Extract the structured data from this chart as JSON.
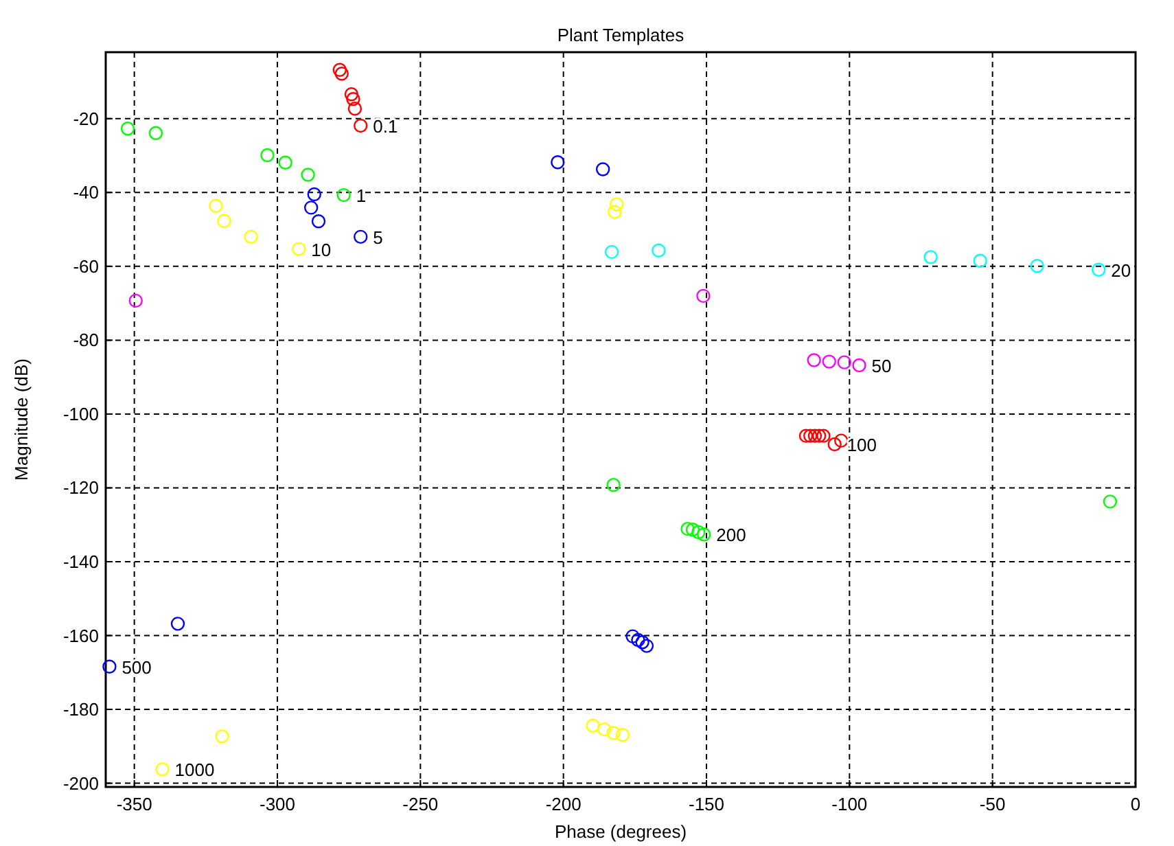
{
  "chart_data": {
    "type": "scatter",
    "title": "Plant Templates",
    "xlabel": "Phase (degrees)",
    "ylabel": "Magnitude (dB)",
    "xlim": [
      -360,
      0
    ],
    "ylim": [
      -201,
      -2
    ],
    "xticks": [
      -350,
      -300,
      -250,
      -200,
      -150,
      -100,
      -50,
      0
    ],
    "yticks": [
      -200,
      -180,
      -160,
      -140,
      -120,
      -100,
      -80,
      -60,
      -40,
      -20
    ],
    "grid": true,
    "marker": "circle",
    "series": [
      {
        "color": "#ff0000",
        "x": [
          -278.2,
          -277.5,
          -274.1,
          -273.5,
          -272.9,
          -270.9,
          -115.2,
          -113.7,
          -112.1,
          -110.6,
          -109.1,
          -105.2,
          -102.9
        ],
        "values": [
          -6.8,
          -7.8,
          -13.4,
          -14.7,
          -17.3,
          -21.9,
          -105.9,
          -105.9,
          -105.9,
          -105.9,
          -105.9,
          -108.2,
          -107.2
        ]
      },
      {
        "color": "#00ff00",
        "x": [
          -352.3,
          -342.5,
          -303.5,
          -297.2,
          -289.3,
          -276.8,
          -182.5,
          -8.9,
          -156.6,
          -154.8,
          -152.8,
          -150.9
        ],
        "values": [
          -22.7,
          -23.9,
          -29.9,
          -31.9,
          -35.2,
          -40.7,
          -119.2,
          -123.7,
          -131.1,
          -131.3,
          -132.0,
          -132.6
        ]
      },
      {
        "color": "#0000ff",
        "x": [
          -287.1,
          -288.2,
          -285.6,
          -270.9,
          -202.0,
          -186.2,
          -334.8,
          -358.7,
          -175.8,
          -173.9,
          -172.4,
          -170.9
        ],
        "values": [
          -40.5,
          -44.1,
          -47.8,
          -52.0,
          -31.8,
          -33.7,
          -156.8,
          -168.4,
          -160.2,
          -161.2,
          -161.8,
          -162.8
        ]
      },
      {
        "color": "#ffff00",
        "x": [
          -321.5,
          -318.6,
          -309.2,
          -292.5,
          -181.4,
          -182.1,
          -319.3,
          -340.2,
          -189.7,
          -185.7,
          -182.5,
          -179.3
        ],
        "values": [
          -43.6,
          -47.7,
          -52.0,
          -55.3,
          -43.2,
          -45.3,
          -187.3,
          -196.2,
          -184.4,
          -185.4,
          -186.4,
          -186.9
        ]
      },
      {
        "color": "#00ffff",
        "x": [
          -183.1,
          -166.7,
          -71.6,
          -54.3,
          -34.4,
          -12.9
        ],
        "values": [
          -56.1,
          -55.7,
          -57.5,
          -58.5,
          -59.9,
          -60.9
        ]
      },
      {
        "color": "#ff00ff",
        "x": [
          -349.5,
          -151.1,
          -112.4,
          -107.1,
          -101.8,
          -96.6
        ],
        "values": [
          -69.3,
          -68.0,
          -85.4,
          -85.8,
          -86.0,
          -86.8
        ]
      }
    ],
    "annotations": [
      {
        "text": "0.1",
        "x": -270.9,
        "y": -21.9
      },
      {
        "text": "1",
        "x": -276.8,
        "y": -40.7
      },
      {
        "text": "5",
        "x": -270.9,
        "y": -52.0
      },
      {
        "text": "10",
        "x": -292.5,
        "y": -55.3
      },
      {
        "text": "20",
        "x": -12.9,
        "y": -60.9
      },
      {
        "text": "50",
        "x": -96.6,
        "y": -86.8
      },
      {
        "text": "100",
        "x": -105.2,
        "y": -108.2
      },
      {
        "text": "200",
        "x": -150.9,
        "y": -132.6
      },
      {
        "text": "500",
        "x": -358.7,
        "y": -168.4
      },
      {
        "text": "1000",
        "x": -340.2,
        "y": -196.2
      }
    ]
  }
}
